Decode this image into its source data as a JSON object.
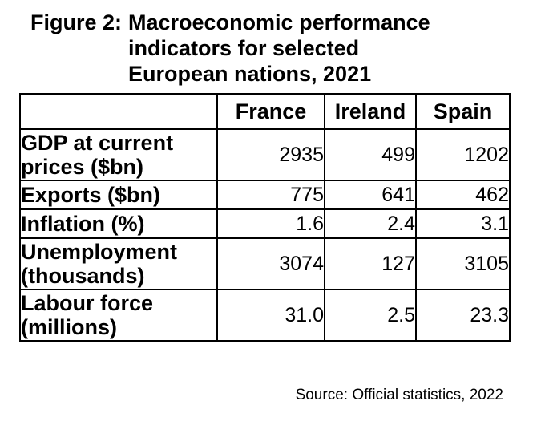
{
  "figure": {
    "label": "Figure 2:",
    "title_lines": [
      "Macroeconomic performance",
      "indicators for selected",
      "European nations, 2021"
    ]
  },
  "table": {
    "columns": [
      "France",
      "Ireland",
      "Spain"
    ],
    "rows": [
      {
        "label_lines": [
          "GDP at current",
          "prices ($bn)"
        ],
        "values": [
          "2935",
          "499",
          "1202"
        ]
      },
      {
        "label_lines": [
          "Exports ($bn)"
        ],
        "values": [
          "775",
          "641",
          "462"
        ]
      },
      {
        "label_lines": [
          "Inflation (%)"
        ],
        "values": [
          "1.6",
          "2.4",
          "3.1"
        ]
      },
      {
        "label_lines": [
          "Unemployment",
          "(thousands)"
        ],
        "values": [
          "3074",
          "127",
          "3105"
        ]
      },
      {
        "label_lines": [
          "Labour force",
          "(millions)"
        ],
        "values": [
          "31.0",
          "2.5",
          "23.3"
        ]
      }
    ]
  },
  "source": "Source: Official statistics, 2022"
}
